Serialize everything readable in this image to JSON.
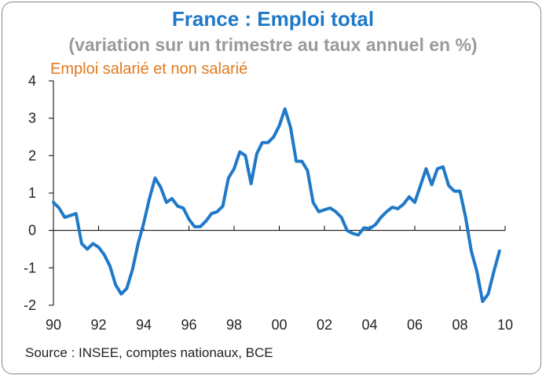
{
  "title": "France : Emploi total",
  "subtitle": "(variation sur un trimestre au taux annuel en %)",
  "source": "Source : INSEE, comptes nationaux, BCE",
  "colors": {
    "line": "#1f79c8",
    "title": "#1f79c8",
    "series_label": "#e2791e",
    "subtitle": "#9a9a9a"
  },
  "chart_data": {
    "type": "line",
    "title": "France : Emploi total",
    "subtitle": "(variation sur un trimestre au taux annuel en %)",
    "xlabel": "",
    "ylabel": "",
    "xlim": [
      1990,
      2010
    ],
    "ylim": [
      -2,
      4
    ],
    "x_ticks": [
      1990,
      1992,
      1994,
      1996,
      1998,
      2000,
      2002,
      2004,
      2006,
      2008,
      2010
    ],
    "x_tick_labels": [
      "90",
      "92",
      "94",
      "96",
      "98",
      "00",
      "02",
      "04",
      "06",
      "08",
      "10"
    ],
    "y_ticks": [
      -2,
      -1,
      0,
      1,
      2,
      3,
      4
    ],
    "y_tick_labels": [
      "-2",
      "-1",
      "0",
      "1",
      "2",
      "3",
      "4"
    ],
    "grid": false,
    "series": [
      {
        "name": "Emploi salarié et non salarié",
        "x": [
          1990.0,
          1990.25,
          1990.5,
          1990.75,
          1991.0,
          1991.25,
          1991.5,
          1991.75,
          1992.0,
          1992.25,
          1992.5,
          1992.75,
          1993.0,
          1993.25,
          1993.5,
          1993.75,
          1994.0,
          1994.25,
          1994.5,
          1994.75,
          1995.0,
          1995.25,
          1995.5,
          1995.75,
          1996.0,
          1996.25,
          1996.5,
          1996.75,
          1997.0,
          1997.25,
          1997.5,
          1997.75,
          1998.0,
          1998.25,
          1998.5,
          1998.75,
          1999.0,
          1999.25,
          1999.5,
          1999.75,
          2000.0,
          2000.25,
          2000.5,
          2000.75,
          2001.0,
          2001.25,
          2001.5,
          2001.75,
          2002.0,
          2002.25,
          2002.5,
          2002.75,
          2003.0,
          2003.25,
          2003.5,
          2003.75,
          2004.0,
          2004.25,
          2004.5,
          2004.75,
          2005.0,
          2005.25,
          2005.5,
          2005.75,
          2006.0,
          2006.25,
          2006.5,
          2006.75,
          2007.0,
          2007.25,
          2007.5,
          2007.75,
          2008.0,
          2008.25,
          2008.5,
          2008.75,
          2009.0,
          2009.25,
          2009.5,
          2009.75
        ],
        "values": [
          0.75,
          0.6,
          0.35,
          0.4,
          0.45,
          -0.35,
          -0.5,
          -0.35,
          -0.45,
          -0.65,
          -0.95,
          -1.45,
          -1.7,
          -1.55,
          -1.05,
          -0.35,
          0.2,
          0.85,
          1.4,
          1.15,
          0.75,
          0.85,
          0.65,
          0.6,
          0.3,
          0.1,
          0.1,
          0.25,
          0.45,
          0.5,
          0.65,
          1.4,
          1.65,
          2.1,
          2.0,
          1.25,
          2.05,
          2.35,
          2.35,
          2.5,
          2.8,
          3.25,
          2.75,
          1.85,
          1.85,
          1.6,
          0.75,
          0.5,
          0.55,
          0.6,
          0.5,
          0.35,
          0.0,
          -0.08,
          -0.12,
          0.07,
          0.05,
          0.15,
          0.35,
          0.5,
          0.62,
          0.58,
          0.7,
          0.9,
          0.75,
          1.2,
          1.65,
          1.22,
          1.65,
          1.7,
          1.2,
          1.05,
          1.05,
          0.35,
          -0.55,
          -1.1,
          -1.9,
          -1.7,
          -1.1,
          -0.55
        ]
      }
    ]
  }
}
